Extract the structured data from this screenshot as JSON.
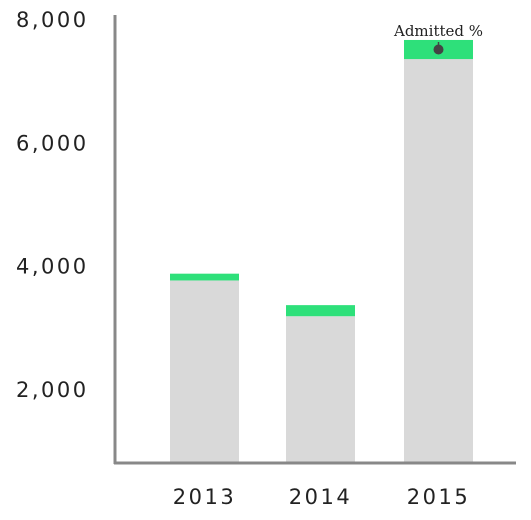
{
  "chart_data": {
    "type": "bar",
    "stacked": true,
    "categories": [
      "2013",
      "2014",
      "2015"
    ],
    "series": [
      {
        "values": [
          2960,
          2380,
          6550
        ],
        "color": "#d9d9d9"
      },
      {
        "values": [
          110,
          180,
          310
        ],
        "color": "#2ee07a"
      }
    ],
    "title": "",
    "xlabel": "",
    "ylabel": "",
    "ylim": [
      800,
      8000
    ],
    "yticks": [
      2000,
      4000,
      6000,
      8000
    ],
    "ytick_labels": [
      "2,000",
      "4,000",
      "6,000",
      "8,000"
    ],
    "grid": false,
    "legend": "none",
    "axis_color": "#888888",
    "annotation": {
      "text": "Admitted %",
      "target_category": "2015",
      "target_series": 1
    }
  }
}
